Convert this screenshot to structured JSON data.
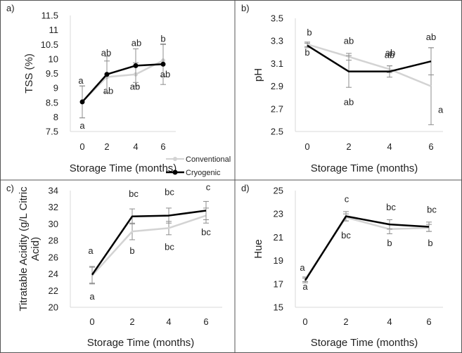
{
  "colors": {
    "conventional": "#d3d3d3",
    "cryogenic": "#000000",
    "error_bar": "#8c8c8c",
    "frame": "#555555",
    "axis": "#d9d9d9"
  },
  "legend": {
    "conventional": "Conventional",
    "cryogenic": "Cryogenic",
    "placement": "below panel a, right side"
  },
  "chart_data": [
    {
      "panel": "a)",
      "type": "line",
      "xlabel": "Storage Time (months)",
      "ylabel": "TSS (%)",
      "x": [
        0,
        2,
        4,
        6
      ],
      "xticks": [
        "0",
        "2",
        "4",
        "6"
      ],
      "ylim": [
        7.5,
        11.5
      ],
      "yticks": [
        "7.5",
        "8",
        "8.5",
        "9",
        "9.5",
        "10",
        "10.5",
        "11",
        "11.5"
      ],
      "grid": false,
      "series": [
        {
          "name": "Conventional",
          "values": [
            8.52,
            9.38,
            9.47,
            9.95
          ],
          "errors": [
            0.55,
            0.55,
            0.4,
            0.55
          ],
          "labels": [
            "a",
            "ab",
            "ab",
            "ab"
          ]
        },
        {
          "name": "Cryogenic",
          "values": [
            8.52,
            9.47,
            9.77,
            9.82
          ],
          "errors": [
            0.55,
            0.62,
            0.58,
            0.7
          ],
          "labels": [
            "a",
            "ab",
            "ab",
            "b"
          ]
        }
      ]
    },
    {
      "panel": "b)",
      "type": "line",
      "xlabel": "Storage Time (months)",
      "ylabel": "pH",
      "x": [
        0,
        2,
        4,
        6
      ],
      "xticks": [
        "0",
        "2",
        "4",
        "6"
      ],
      "ylim": [
        2.5,
        3.5
      ],
      "yticks": [
        "2.5",
        "2.7",
        "2.9",
        "3.1",
        "3.3",
        "3.5"
      ],
      "grid": false,
      "series": [
        {
          "name": "Conventional",
          "values": [
            3.27,
            3.16,
            3.05,
            2.9
          ],
          "errors": [
            0.02,
            0.03,
            0.03,
            0.34
          ],
          "labels": [
            "b",
            "ab",
            "ab",
            "a"
          ]
        },
        {
          "name": "Cryogenic",
          "values": [
            3.26,
            3.03,
            3.03,
            3.12
          ],
          "errors": [
            0.02,
            0.14,
            0.05,
            0.12
          ],
          "labels": [
            "b",
            "ab",
            "ab",
            "ab"
          ]
        }
      ]
    },
    {
      "panel": "c)",
      "type": "line",
      "xlabel": "Storage Time (months)",
      "ylabel": "Titratable Acidity (g/L Citric Acid)",
      "ylabel_lines": [
        "Titratable Acidity (g/L Citric",
        "Acid)"
      ],
      "x": [
        0,
        2,
        4,
        6
      ],
      "xticks": [
        "0",
        "2",
        "4",
        "6"
      ],
      "ylim": [
        20,
        34
      ],
      "yticks": [
        "20",
        "22",
        "24",
        "26",
        "28",
        "30",
        "32",
        "34"
      ],
      "grid": false,
      "series": [
        {
          "name": "Conventional",
          "values": [
            23.8,
            29.1,
            29.5,
            31.0
          ],
          "errors": [
            1.0,
            1.0,
            0.8,
            0.9
          ],
          "labels": [
            "a",
            "b",
            "bc",
            "bc"
          ]
        },
        {
          "name": "Cryogenic",
          "values": [
            23.9,
            30.9,
            31.0,
            31.6
          ],
          "errors": [
            1.0,
            0.9,
            0.9,
            1.1
          ],
          "labels": [
            "a",
            "bc",
            "bc",
            "c"
          ]
        }
      ]
    },
    {
      "panel": "d)",
      "type": "line",
      "xlabel": "Storage Time (months)",
      "ylabel": "Hue",
      "x": [
        0,
        2,
        4,
        6
      ],
      "xticks": [
        "0",
        "2",
        "4",
        "6"
      ],
      "ylim": [
        15,
        25
      ],
      "yticks": [
        "15",
        "17",
        "19",
        "21",
        "23",
        "25"
      ],
      "grid": false,
      "series": [
        {
          "name": "Conventional",
          "values": [
            17.4,
            22.7,
            21.7,
            21.8
          ],
          "errors": [
            0.2,
            0.3,
            0.4,
            0.3
          ],
          "labels": [
            "a",
            "bc",
            "b",
            "b"
          ]
        },
        {
          "name": "Cryogenic",
          "values": [
            17.3,
            22.8,
            22.1,
            21.9
          ],
          "errors": [
            0.2,
            0.4,
            0.4,
            0.4
          ],
          "labels": [
            "a",
            "c",
            "bc",
            "bc"
          ]
        }
      ]
    }
  ]
}
